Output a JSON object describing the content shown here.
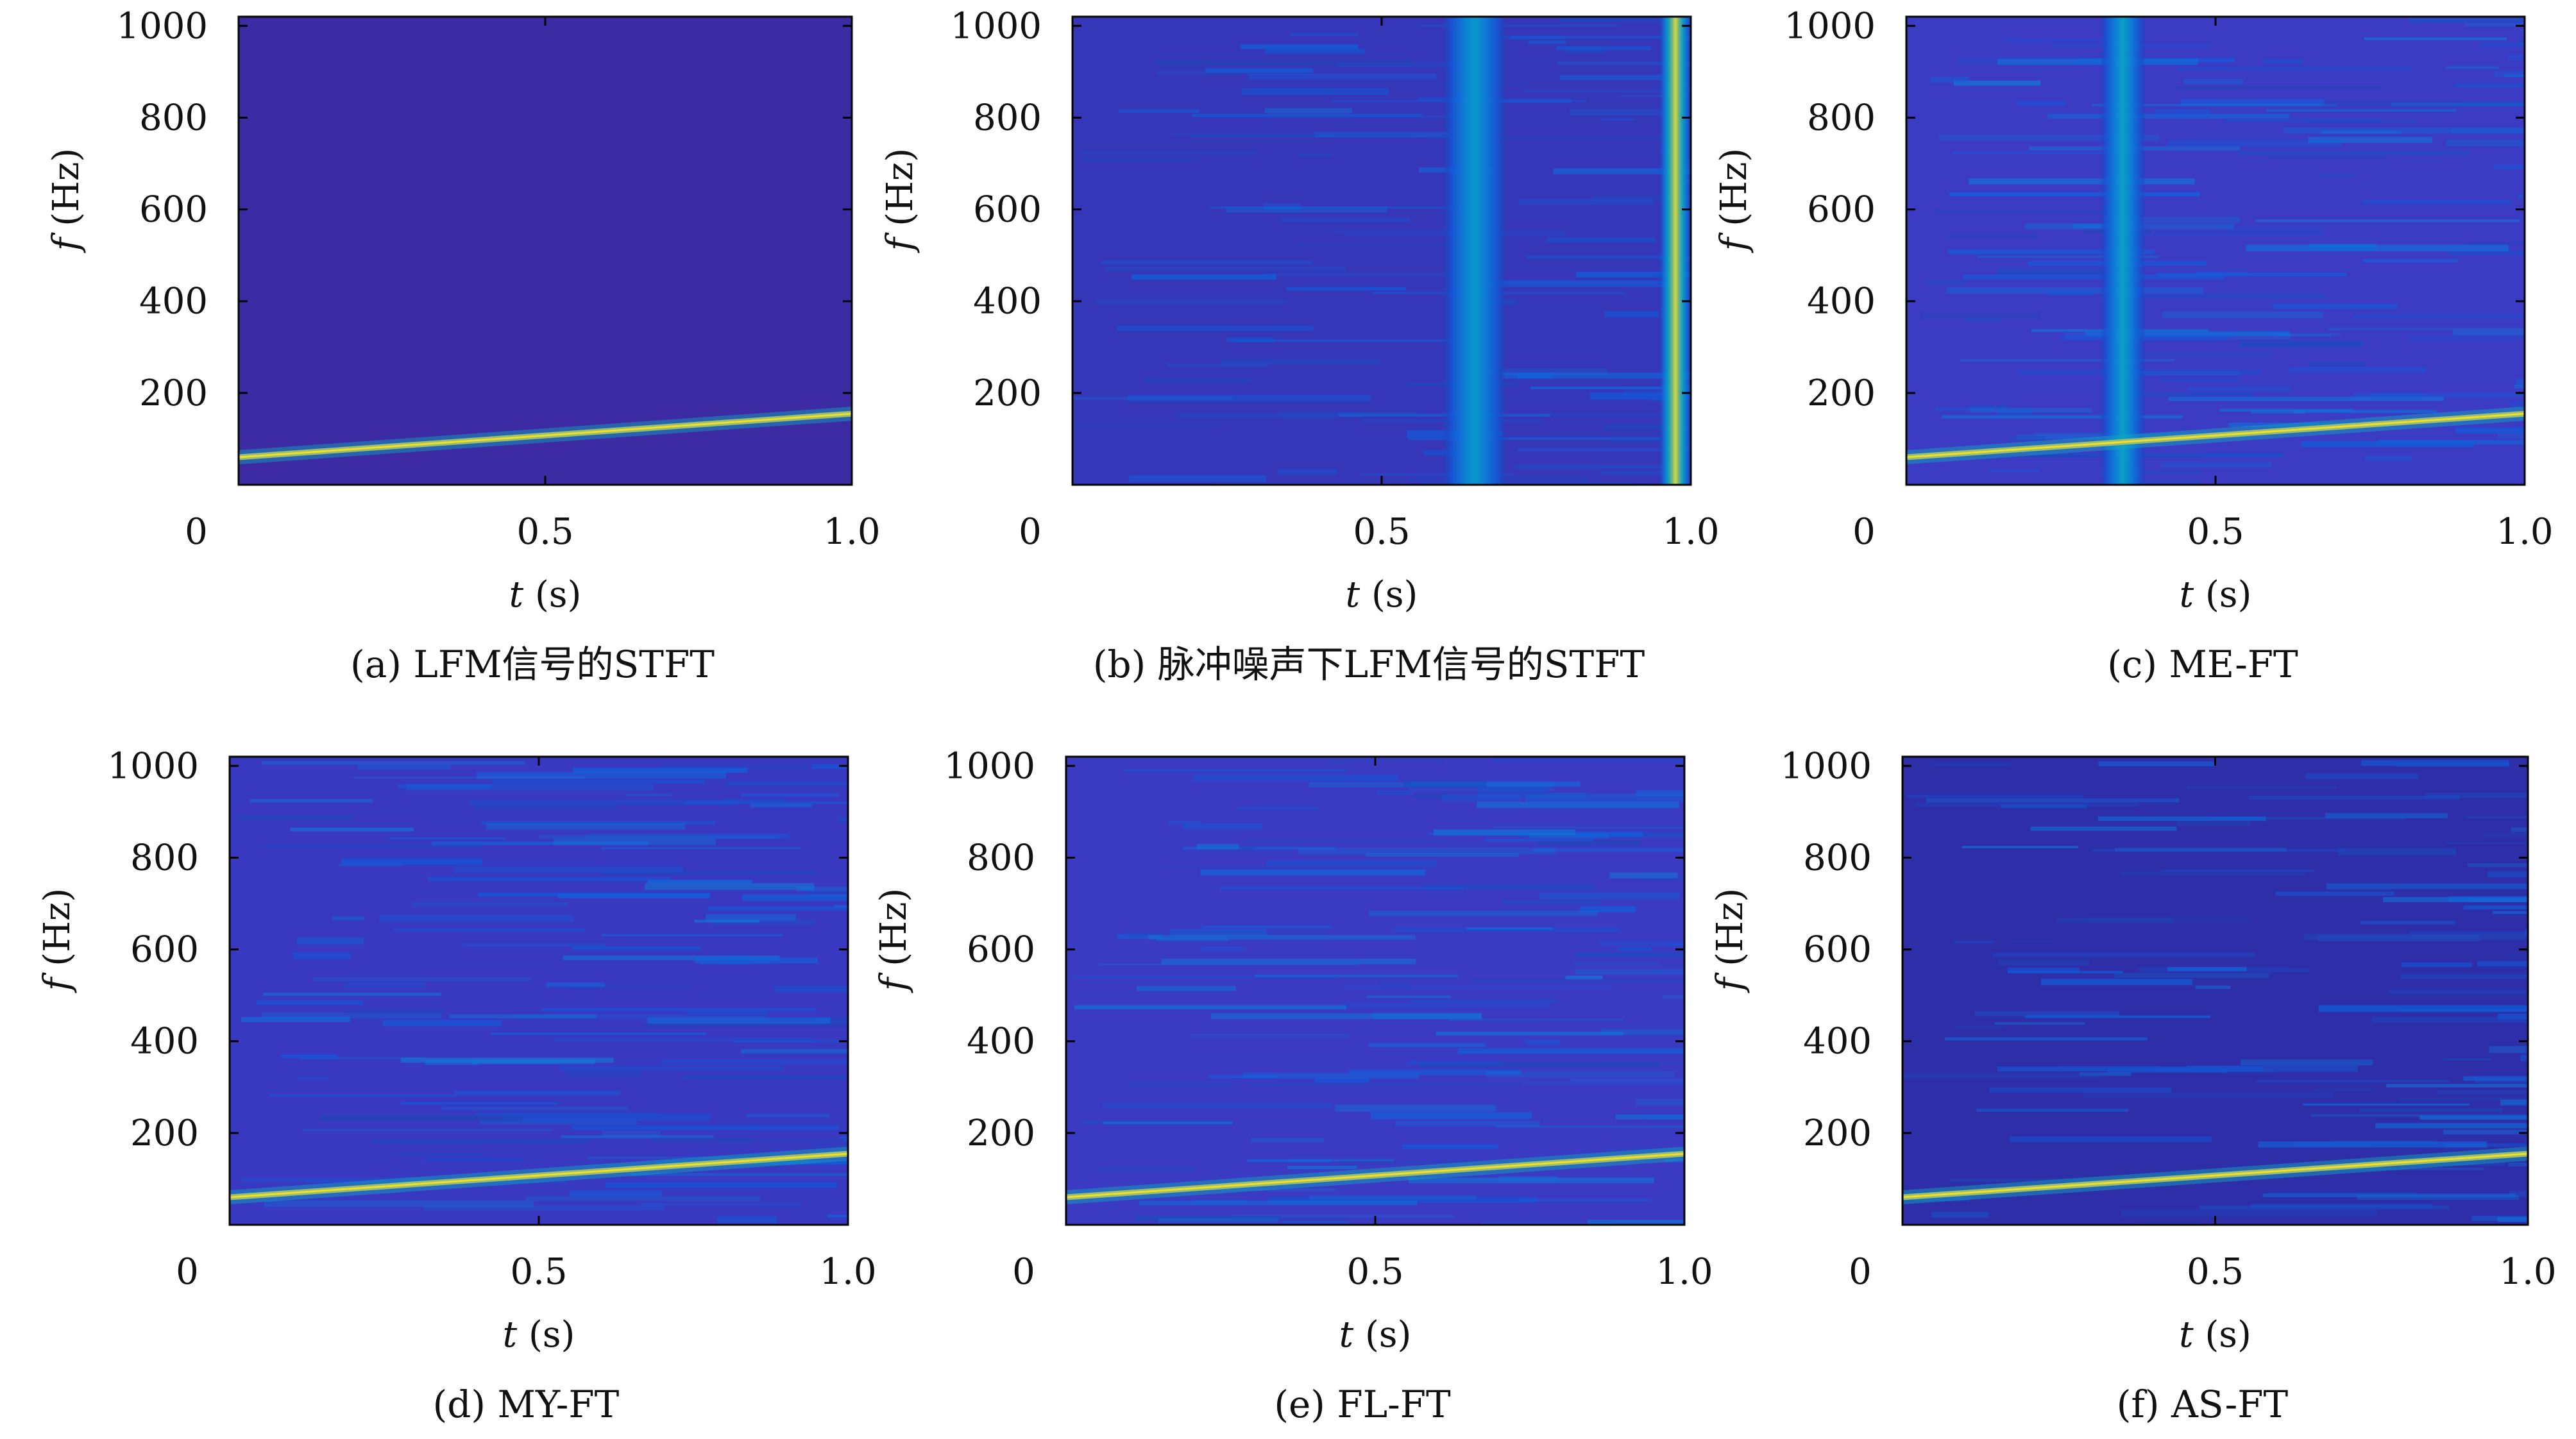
{
  "figure": {
    "panels_layout": "2x3 grid",
    "colormap": "parula"
  },
  "chart_data": [
    {
      "type": "heatmap",
      "panel": "a",
      "caption": "(a) LFM信号的STFT",
      "xlabel_var": "t",
      "xlabel_unit": " (s)",
      "ylabel_var": "f",
      "ylabel_unit": " (Hz)",
      "x_ticks": [
        "0",
        "0.5",
        "1.0"
      ],
      "y_ticks": [
        "200",
        "400",
        "600",
        "800",
        "1000"
      ],
      "xlim": [
        0,
        1.0
      ],
      "ylim": [
        0,
        1020
      ],
      "background_color": "#3c2ba3",
      "ridge": {
        "t": [
          0.0,
          1.0
        ],
        "f": [
          60,
          155
        ]
      },
      "noise_level": 0.0,
      "impulse_bands": []
    },
    {
      "type": "heatmap",
      "panel": "b",
      "caption": "(b) 脉冲噪声下LFM信号的STFT",
      "xlabel_var": "t",
      "xlabel_unit": " (s)",
      "ylabel_var": "f",
      "ylabel_unit": " (Hz)",
      "x_ticks": [
        "0",
        "0.5",
        "1.0"
      ],
      "y_ticks": [
        "200",
        "400",
        "600",
        "800",
        "1000"
      ],
      "xlim": [
        0,
        1.0
      ],
      "ylim": [
        0,
        1020
      ],
      "background_color": "#3636b8",
      "ridge": null,
      "noise_level": 0.25,
      "impulse_bands": [
        {
          "t": 0.65,
          "width": 0.1,
          "level": 0.45
        },
        {
          "t": 0.975,
          "width": 0.05,
          "level": 1.0
        }
      ]
    },
    {
      "type": "heatmap",
      "panel": "c",
      "caption": "(c) ME-FT",
      "xlabel_var": "t",
      "xlabel_unit": " (s)",
      "ylabel_var": "f",
      "ylabel_unit": " (Hz)",
      "x_ticks": [
        "0",
        "0.5",
        "1.0"
      ],
      "y_ticks": [
        "200",
        "400",
        "600",
        "800",
        "1000"
      ],
      "xlim": [
        0,
        1.0
      ],
      "ylim": [
        0,
        1020
      ],
      "background_color": "#3b3bc4",
      "ridge": {
        "t": [
          0.0,
          1.0
        ],
        "f": [
          60,
          155
        ]
      },
      "noise_level": 0.35,
      "impulse_bands": [
        {
          "t": 0.35,
          "width": 0.07,
          "level": 0.5
        }
      ]
    },
    {
      "type": "heatmap",
      "panel": "d",
      "caption": "(d) MY-FT",
      "xlabel_var": "t",
      "xlabel_unit": " (s)",
      "ylabel_var": "f",
      "ylabel_unit": " (Hz)",
      "x_ticks": [
        "0",
        "0.5",
        "1.0"
      ],
      "y_ticks": [
        "200",
        "400",
        "600",
        "800",
        "1000"
      ],
      "xlim": [
        0,
        1.0
      ],
      "ylim": [
        0,
        1020
      ],
      "background_color": "#3838c0",
      "ridge": {
        "t": [
          0.0,
          1.0
        ],
        "f": [
          60,
          155
        ]
      },
      "noise_level": 0.35,
      "impulse_bands": []
    },
    {
      "type": "heatmap",
      "panel": "e",
      "caption": "(e) FL-FT",
      "xlabel_var": "t",
      "xlabel_unit": " (s)",
      "ylabel_var": "f",
      "ylabel_unit": " (Hz)",
      "x_ticks": [
        "0",
        "0.5",
        "1.0"
      ],
      "y_ticks": [
        "200",
        "400",
        "600",
        "800",
        "1000"
      ],
      "xlim": [
        0,
        1.0
      ],
      "ylim": [
        0,
        1020
      ],
      "background_color": "#3a3ac2",
      "ridge": {
        "t": [
          0.0,
          1.0
        ],
        "f": [
          60,
          155
        ]
      },
      "noise_level": 0.35,
      "impulse_bands": []
    },
    {
      "type": "heatmap",
      "panel": "f",
      "caption": "(f) AS-FT",
      "xlabel_var": "t",
      "xlabel_unit": " (s)",
      "ylabel_var": "f",
      "ylabel_unit": " (Hz)",
      "x_ticks": [
        "0",
        "0.5",
        "1.0"
      ],
      "y_ticks": [
        "200",
        "400",
        "600",
        "800",
        "1000"
      ],
      "xlim": [
        0,
        1.0
      ],
      "ylim": [
        0,
        1020
      ],
      "background_color": "#2e2ea8",
      "ridge": {
        "t": [
          0.0,
          1.0
        ],
        "f": [
          60,
          155
        ]
      },
      "noise_level": 0.3,
      "impulse_bands": []
    }
  ]
}
